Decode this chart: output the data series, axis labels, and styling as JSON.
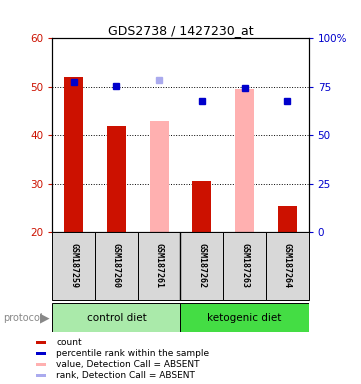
{
  "title": "GDS2738 / 1427230_at",
  "samples": [
    "GSM187259",
    "GSM187260",
    "GSM187261",
    "GSM187262",
    "GSM187263",
    "GSM187264"
  ],
  "ylim_left": [
    20,
    60
  ],
  "ylim_right": [
    0,
    100
  ],
  "yticks_left": [
    20,
    30,
    40,
    50,
    60
  ],
  "yticks_right": [
    0,
    25,
    50,
    75,
    100
  ],
  "yticklabels_right": [
    "0",
    "25",
    "50",
    "75",
    "100%"
  ],
  "red_bars": [
    52,
    42,
    null,
    30.5,
    null,
    25.5
  ],
  "pink_bars": [
    null,
    null,
    43,
    null,
    49.5,
    null
  ],
  "blue_dots": [
    51,
    50.2,
    null,
    47,
    49.8,
    47
  ],
  "light_blue_dots": [
    null,
    null,
    51.5,
    null,
    null,
    null
  ],
  "bar_width": 0.45,
  "red_color": "#cc1100",
  "pink_color": "#ffb0b0",
  "blue_color": "#0000cc",
  "light_blue_color": "#aaaaee",
  "left_tick_color": "#cc1100",
  "right_tick_color": "#0000cc",
  "bg_color": "#d8d8d8",
  "control_diet_color": "#aaeaaa",
  "ketogenic_diet_color": "#44dd44",
  "legend_labels": [
    "count",
    "percentile rank within the sample",
    "value, Detection Call = ABSENT",
    "rank, Detection Call = ABSENT"
  ],
  "legend_colors": [
    "#cc1100",
    "#0000cc",
    "#ffb0b0",
    "#aaaaee"
  ],
  "grid_color": "black",
  "grid_linestyle": ":"
}
